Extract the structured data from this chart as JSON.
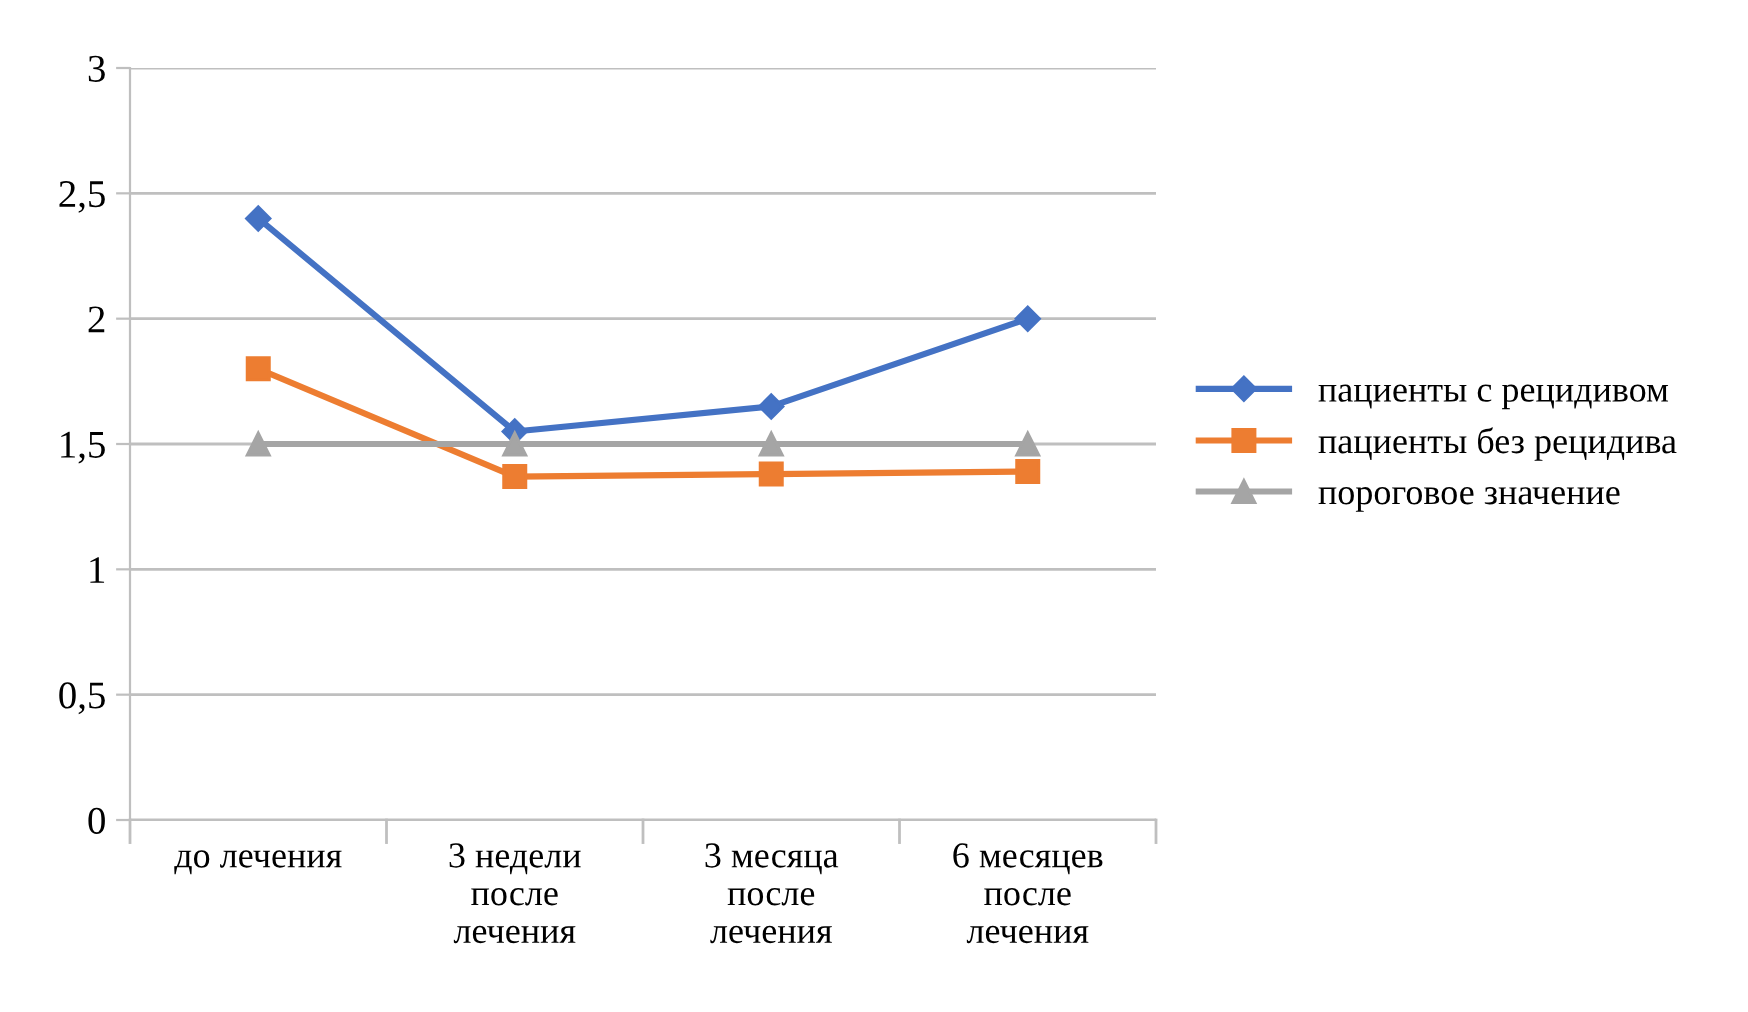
{
  "chart_data": {
    "type": "line",
    "categories": [
      "до лечения",
      "3 недели\nпосле\nлечения",
      "3 месяца\nпосле\nлечения",
      "6 месяцев\nпосле\nлечения"
    ],
    "series": [
      {
        "name": "пациенты с рецидивом",
        "color": "#4472c4",
        "marker": "diamond",
        "values": [
          2.4,
          1.55,
          1.65,
          2.0
        ]
      },
      {
        "name": "пациенты без рецидива",
        "color": "#ed7d31",
        "marker": "square",
        "values": [
          1.8,
          1.37,
          1.38,
          1.39
        ]
      },
      {
        "name": "пороговое значение",
        "color": "#a5a5a5",
        "marker": "triangle",
        "values": [
          1.5,
          1.5,
          1.5,
          1.5
        ]
      }
    ],
    "ylim": [
      0,
      3
    ],
    "yticks": [
      0,
      {
        "value": 0.5,
        "label": "0,5"
      },
      1,
      {
        "value": 1.5,
        "label": "1,5"
      },
      2,
      {
        "value": 2.5,
        "label": "2,5"
      },
      3
    ],
    "grid": "y",
    "legend": "right",
    "line_style": "solid"
  }
}
